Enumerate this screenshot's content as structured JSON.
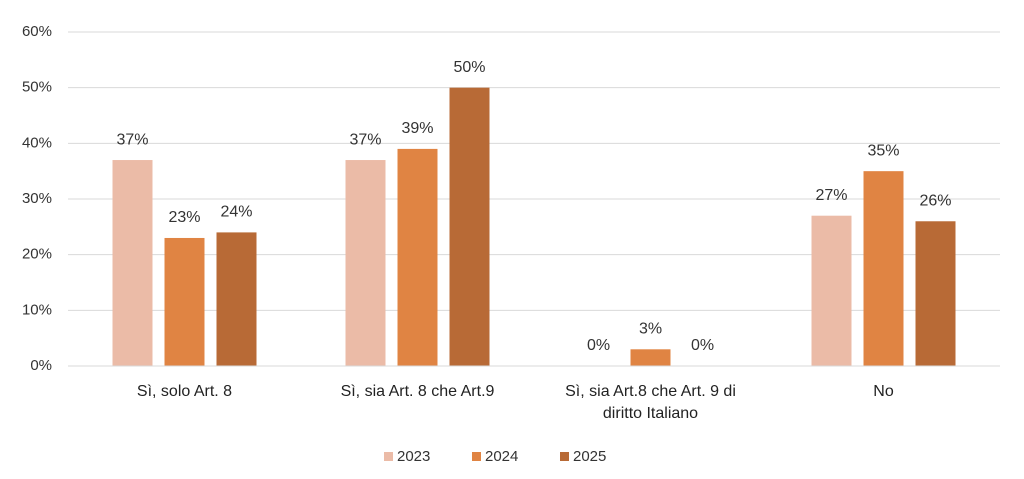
{
  "chart_data": {
    "type": "bar",
    "categories": [
      "Sì, solo Art. 8",
      "Sì, sia Art. 8 che Art.9",
      "Sì, sia Art.8 che Art. 9 di diritto Italiano",
      "No"
    ],
    "series": [
      {
        "name": "2023",
        "color": "#ebbba7",
        "values": [
          37,
          37,
          0,
          27
        ],
        "value_labels": [
          "37%",
          "37%",
          "0%",
          "27%"
        ]
      },
      {
        "name": "2024",
        "color": "#e08443",
        "values": [
          23,
          39,
          3,
          35
        ],
        "value_labels": [
          "23%",
          "39%",
          "3%",
          "35%"
        ]
      },
      {
        "name": "2025",
        "color": "#b86a36",
        "values": [
          24,
          50,
          0,
          26
        ],
        "value_labels": [
          "24%",
          "50%",
          "0%",
          "26%"
        ]
      }
    ],
    "ylim": [
      0,
      60
    ],
    "yticks": [
      {
        "value": 0,
        "label": "0%"
      },
      {
        "value": 10,
        "label": "10%"
      },
      {
        "value": 20,
        "label": "20%"
      },
      {
        "value": 30,
        "label": "30%"
      },
      {
        "value": 40,
        "label": "40%"
      },
      {
        "value": 50,
        "label": "50%"
      },
      {
        "value": 60,
        "label": "60%"
      }
    ],
    "grid": true,
    "legend": "bottom"
  }
}
